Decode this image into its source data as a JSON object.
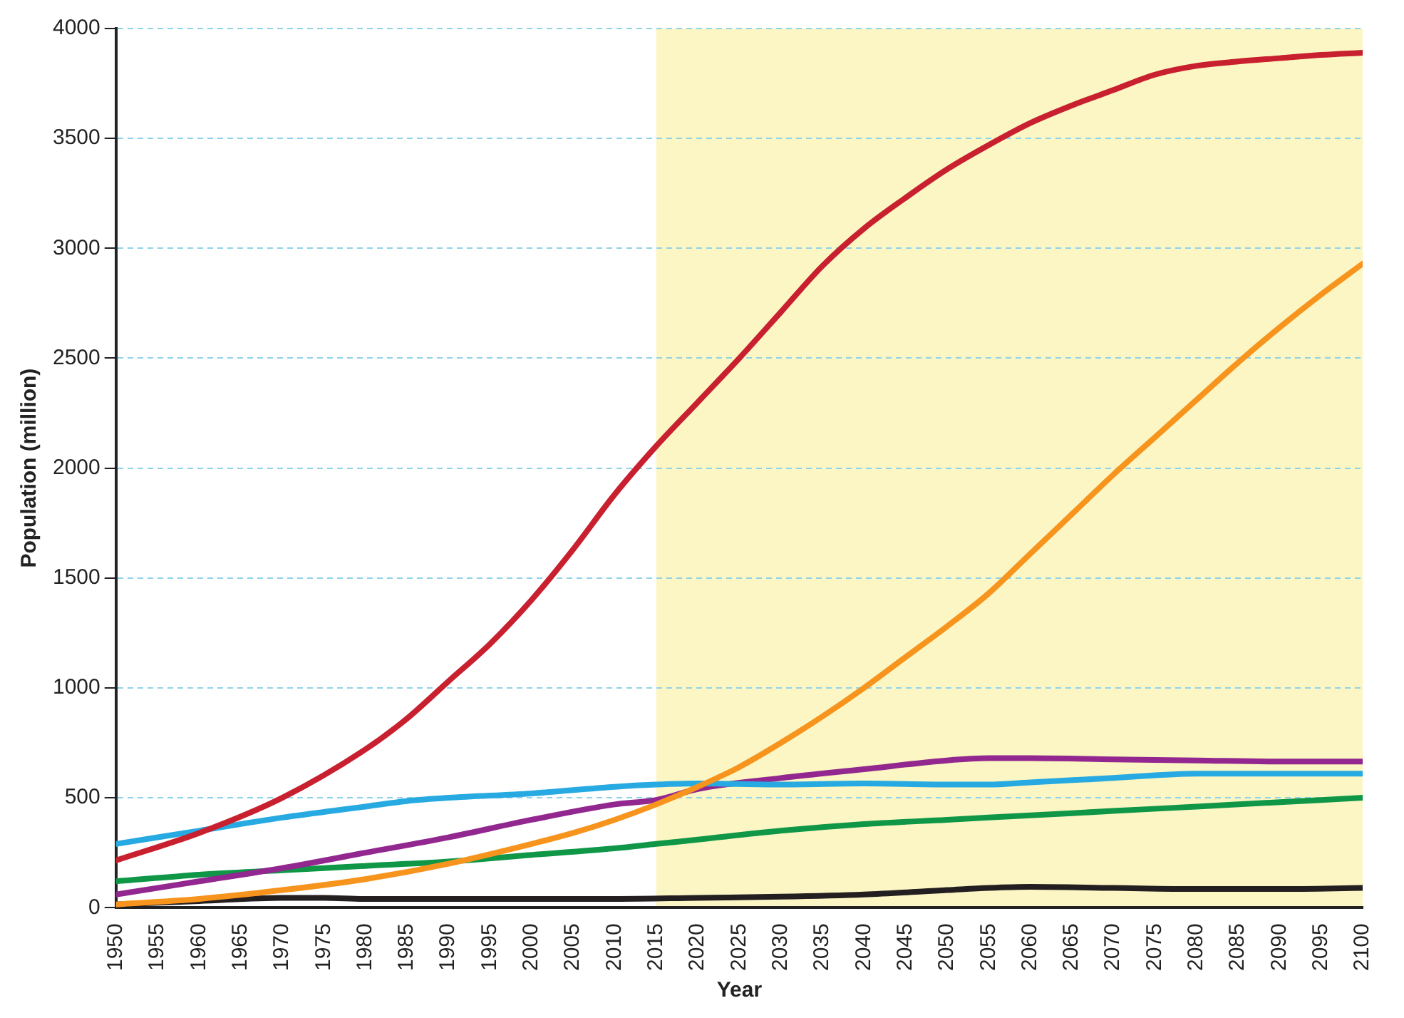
{
  "chart_data": {
    "type": "line",
    "xlabel": "Year",
    "ylabel": "Population (million)",
    "xlim": [
      1950,
      2100
    ],
    "xticks": [
      1950,
      1955,
      1960,
      1965,
      1970,
      1975,
      1980,
      1985,
      1990,
      1995,
      2000,
      2005,
      2010,
      2015,
      2020,
      2025,
      2030,
      2035,
      2040,
      2045,
      2050,
      2055,
      2060,
      2065,
      2070,
      2075,
      2080,
      2085,
      2090,
      2095,
      2100
    ],
    "ylim": [
      0,
      4000
    ],
    "yticks": [
      0,
      500,
      1000,
      1500,
      2000,
      2500,
      3000,
      3500,
      4000
    ],
    "grid": "y",
    "legend": false,
    "marker": "none",
    "line_style": "solid",
    "bands": [
      {
        "axis": "x",
        "from": 2015,
        "to": 2100,
        "color": "#fcf6c4"
      }
    ],
    "series": [
      {
        "color": "#c8202f",
        "x": [
          1950,
          1960,
          1970,
          1980,
          1985,
          1990,
          1995,
          2000,
          2005,
          2010,
          2015,
          2020,
          2025,
          2030,
          2035,
          2040,
          2045,
          2050,
          2055,
          2060,
          2065,
          2070,
          2075,
          2080,
          2085,
          2090,
          2095,
          2100
        ],
        "values": [
          215,
          340,
          500,
          720,
          860,
          1030,
          1200,
          1400,
          1630,
          1880,
          2100,
          2300,
          2500,
          2710,
          2920,
          3090,
          3230,
          3360,
          3470,
          3570,
          3650,
          3720,
          3790,
          3830,
          3850,
          3865,
          3880,
          3890
        ]
      },
      {
        "color": "#f7941d",
        "x": [
          1950,
          1960,
          1970,
          1980,
          1990,
          2000,
          2005,
          2010,
          2015,
          2020,
          2025,
          2030,
          2035,
          2040,
          2045,
          2050,
          2055,
          2060,
          2065,
          2070,
          2075,
          2080,
          2085,
          2090,
          2095,
          2100
        ],
        "values": [
          15,
          40,
          80,
          130,
          200,
          290,
          340,
          400,
          470,
          550,
          640,
          750,
          870,
          1000,
          1140,
          1280,
          1430,
          1610,
          1790,
          1970,
          2140,
          2310,
          2480,
          2640,
          2790,
          2930
        ]
      },
      {
        "color": "#27aae1",
        "x": [
          1950,
          1960,
          1970,
          1980,
          1985,
          1990,
          2000,
          2010,
          2015,
          2020,
          2030,
          2040,
          2050,
          2055,
          2060,
          2070,
          2080,
          2090,
          2100
        ],
        "values": [
          290,
          350,
          410,
          460,
          485,
          500,
          520,
          550,
          560,
          565,
          560,
          565,
          560,
          560,
          570,
          590,
          610,
          610,
          610
        ]
      },
      {
        "color": "#92278f",
        "x": [
          1950,
          1960,
          1970,
          1980,
          1990,
          2000,
          2010,
          2015,
          2020,
          2030,
          2040,
          2050,
          2055,
          2060,
          2070,
          2080,
          2090,
          2100
        ],
        "values": [
          60,
          120,
          180,
          250,
          320,
          400,
          470,
          490,
          540,
          590,
          630,
          670,
          680,
          680,
          675,
          670,
          665,
          665
        ]
      },
      {
        "color": "#0f9747",
        "x": [
          1950,
          1960,
          1970,
          1980,
          1990,
          2000,
          2010,
          2015,
          2020,
          2030,
          2040,
          2050,
          2060,
          2070,
          2080,
          2090,
          2100
        ],
        "values": [
          120,
          150,
          170,
          190,
          210,
          240,
          270,
          290,
          310,
          350,
          380,
          400,
          420,
          440,
          460,
          480,
          500
        ]
      },
      {
        "color": "#231f20",
        "x": [
          1950,
          1960,
          1970,
          1975,
          1980,
          1990,
          2000,
          2010,
          2020,
          2030,
          2040,
          2050,
          2055,
          2060,
          2070,
          2080,
          2090,
          2100
        ],
        "values": [
          15,
          30,
          45,
          45,
          40,
          40,
          40,
          40,
          45,
          50,
          60,
          80,
          90,
          95,
          90,
          85,
          85,
          90
        ]
      }
    ]
  }
}
